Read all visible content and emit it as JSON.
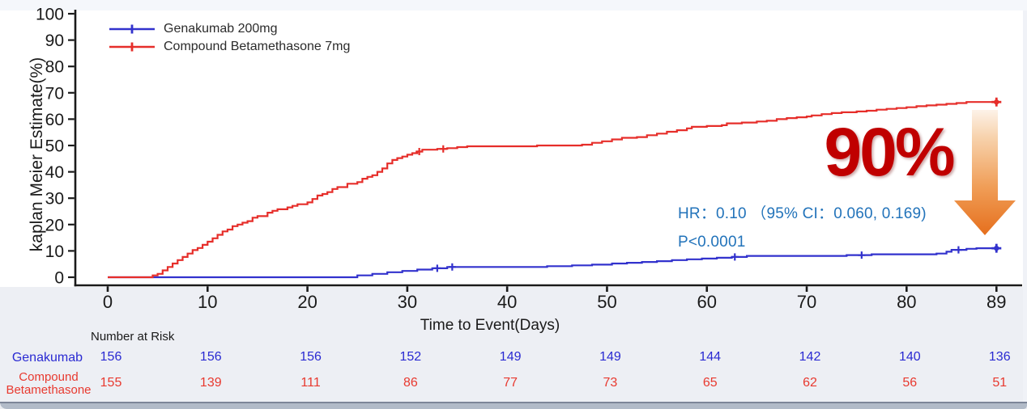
{
  "chart_data": {
    "type": "line",
    "subtype": "kaplan-meier-step",
    "title": "",
    "xlabel": "Time to Event(Days)",
    "ylabel": "kaplan Meier Estimate(%)",
    "x_ticks": [
      0,
      10,
      20,
      30,
      40,
      50,
      60,
      70,
      80,
      89
    ],
    "y_ticks": [
      0,
      10,
      20,
      30,
      40,
      50,
      60,
      70,
      80,
      90,
      100
    ],
    "xlim": [
      0,
      89
    ],
    "ylim": [
      0,
      100
    ],
    "grid": false,
    "legend_position": "top-left",
    "series": [
      {
        "name": "Genakumab 200mg",
        "color": "#3232cd",
        "steps": [
          [
            0,
            0
          ],
          [
            25,
            0.7
          ],
          [
            26.5,
            1.3
          ],
          [
            28,
            1.9
          ],
          [
            29.5,
            2.4
          ],
          [
            31,
            2.9
          ],
          [
            32.5,
            3.4
          ],
          [
            34,
            3.9
          ],
          [
            44,
            4.2
          ],
          [
            46.5,
            4.5
          ],
          [
            48.5,
            4.8
          ],
          [
            50.5,
            5.2
          ],
          [
            52,
            5.5
          ],
          [
            53.5,
            5.8
          ],
          [
            55,
            6.1
          ],
          [
            56.5,
            6.5
          ],
          [
            58,
            6.8
          ],
          [
            59.5,
            7.1
          ],
          [
            61,
            7.4
          ],
          [
            62.5,
            7.7
          ],
          [
            64,
            8.1
          ],
          [
            74,
            8.4
          ],
          [
            76.5,
            8.7
          ],
          [
            83,
            9.0
          ],
          [
            84,
            9.7
          ],
          [
            84.5,
            10.4
          ],
          [
            86,
            10.8
          ],
          [
            87,
            11.0
          ],
          [
            89,
            11.0
          ]
        ],
        "censor_marks": [
          [
            33,
            3.4
          ],
          [
            34.5,
            3.9
          ],
          [
            62.8,
            7.7
          ],
          [
            75.5,
            8.4
          ],
          [
            85.2,
            10.4
          ]
        ],
        "end_marker": [
          89,
          11.0
        ]
      },
      {
        "name": "Compound Betamethasone 7mg",
        "color": "#e62e2a",
        "steps": [
          [
            0,
            0
          ],
          [
            4.5,
            0.7
          ],
          [
            5,
            1.3
          ],
          [
            5.5,
            2.6
          ],
          [
            6,
            3.9
          ],
          [
            6.5,
            5.2
          ],
          [
            7,
            6.5
          ],
          [
            7.5,
            7.7
          ],
          [
            8,
            9.0
          ],
          [
            8.5,
            10.3
          ],
          [
            9,
            11.1
          ],
          [
            9.5,
            12.3
          ],
          [
            10,
            13.5
          ],
          [
            10.5,
            14.8
          ],
          [
            11,
            16.1
          ],
          [
            11.5,
            17.4
          ],
          [
            12,
            18.1
          ],
          [
            12.5,
            19.4
          ],
          [
            13,
            20.0
          ],
          [
            13.5,
            20.7
          ],
          [
            14,
            21.3
          ],
          [
            14.5,
            22.6
          ],
          [
            15,
            23.2
          ],
          [
            16,
            24.5
          ],
          [
            16.5,
            25.2
          ],
          [
            17,
            25.8
          ],
          [
            18,
            26.5
          ],
          [
            18.5,
            27.1
          ],
          [
            19,
            27.7
          ],
          [
            20,
            28.4
          ],
          [
            20.5,
            29.7
          ],
          [
            21,
            31.0
          ],
          [
            21.5,
            31.6
          ],
          [
            22,
            32.3
          ],
          [
            22.5,
            33.5
          ],
          [
            23,
            34.2
          ],
          [
            24,
            35.5
          ],
          [
            25,
            36.1
          ],
          [
            25.5,
            37.4
          ],
          [
            26,
            38.1
          ],
          [
            26.5,
            38.7
          ],
          [
            27,
            40.0
          ],
          [
            27.5,
            41.3
          ],
          [
            28,
            43.2
          ],
          [
            28.5,
            44.5
          ],
          [
            29,
            45.2
          ],
          [
            29.5,
            45.8
          ],
          [
            30,
            46.5
          ],
          [
            30.5,
            47.1
          ],
          [
            31,
            47.7
          ],
          [
            31.5,
            48.4
          ],
          [
            33,
            48.7
          ],
          [
            34,
            49.0
          ],
          [
            35,
            49.4
          ],
          [
            36,
            49.7
          ],
          [
            43,
            50.0
          ],
          [
            47.5,
            50.3
          ],
          [
            48.5,
            51.0
          ],
          [
            49.5,
            51.6
          ],
          [
            50.5,
            52.3
          ],
          [
            51.5,
            52.9
          ],
          [
            53,
            53.2
          ],
          [
            54,
            53.9
          ],
          [
            55,
            54.5
          ],
          [
            56,
            55.2
          ],
          [
            57,
            55.8
          ],
          [
            58,
            56.5
          ],
          [
            58.5,
            57.1
          ],
          [
            60,
            57.4
          ],
          [
            61.5,
            57.7
          ],
          [
            62,
            58.4
          ],
          [
            63.5,
            58.7
          ],
          [
            65,
            59.1
          ],
          [
            66,
            59.4
          ],
          [
            67,
            60.0
          ],
          [
            68,
            60.4
          ],
          [
            69,
            60.7
          ],
          [
            70,
            61.0
          ],
          [
            70.5,
            61.4
          ],
          [
            71.5,
            61.9
          ],
          [
            72.5,
            62.3
          ],
          [
            73.5,
            62.6
          ],
          [
            75,
            62.9
          ],
          [
            76,
            63.2
          ],
          [
            77,
            63.6
          ],
          [
            78,
            63.9
          ],
          [
            79,
            64.2
          ],
          [
            80,
            64.5
          ],
          [
            81,
            64.9
          ],
          [
            82,
            65.2
          ],
          [
            83,
            65.5
          ],
          [
            84,
            65.8
          ],
          [
            85,
            66.1
          ],
          [
            86,
            66.5
          ],
          [
            89,
            66.5
          ]
        ],
        "censor_marks": [
          [
            31.2,
            47.7
          ],
          [
            33.6,
            48.7
          ]
        ],
        "end_marker": [
          89,
          66.5
        ]
      }
    ]
  },
  "annotations": {
    "effect_size": "90%",
    "effect_color": "#c00000",
    "hr_line": "HR：0.10 （95% CI：0.060, 0.169)",
    "p_line": "P<0.0001",
    "stats_color": "#2273ba",
    "arrow_icon": "down-arrow",
    "arrow_color_top": "#fdeee0",
    "arrow_color_bottom": "#e56f1d"
  },
  "risk_table": {
    "header": "Number at Risk",
    "days": [
      0,
      10,
      20,
      30,
      40,
      50,
      60,
      70,
      80,
      89
    ],
    "rows": [
      {
        "label": "Genakumab",
        "color": "#2a2ad2",
        "values": [
          156,
          156,
          156,
          152,
          149,
          149,
          144,
          142,
          140,
          136
        ]
      },
      {
        "label": "Compound Betamethasone",
        "color": "#e8392f",
        "values": [
          155,
          139,
          111,
          86,
          77,
          73,
          65,
          62,
          56,
          51
        ]
      }
    ]
  },
  "colors": {
    "axis": "#1a1a1a",
    "plot_background": "#ffffff",
    "lower_band": "#edeff4",
    "bottom_bar": "#b2bbc8"
  }
}
